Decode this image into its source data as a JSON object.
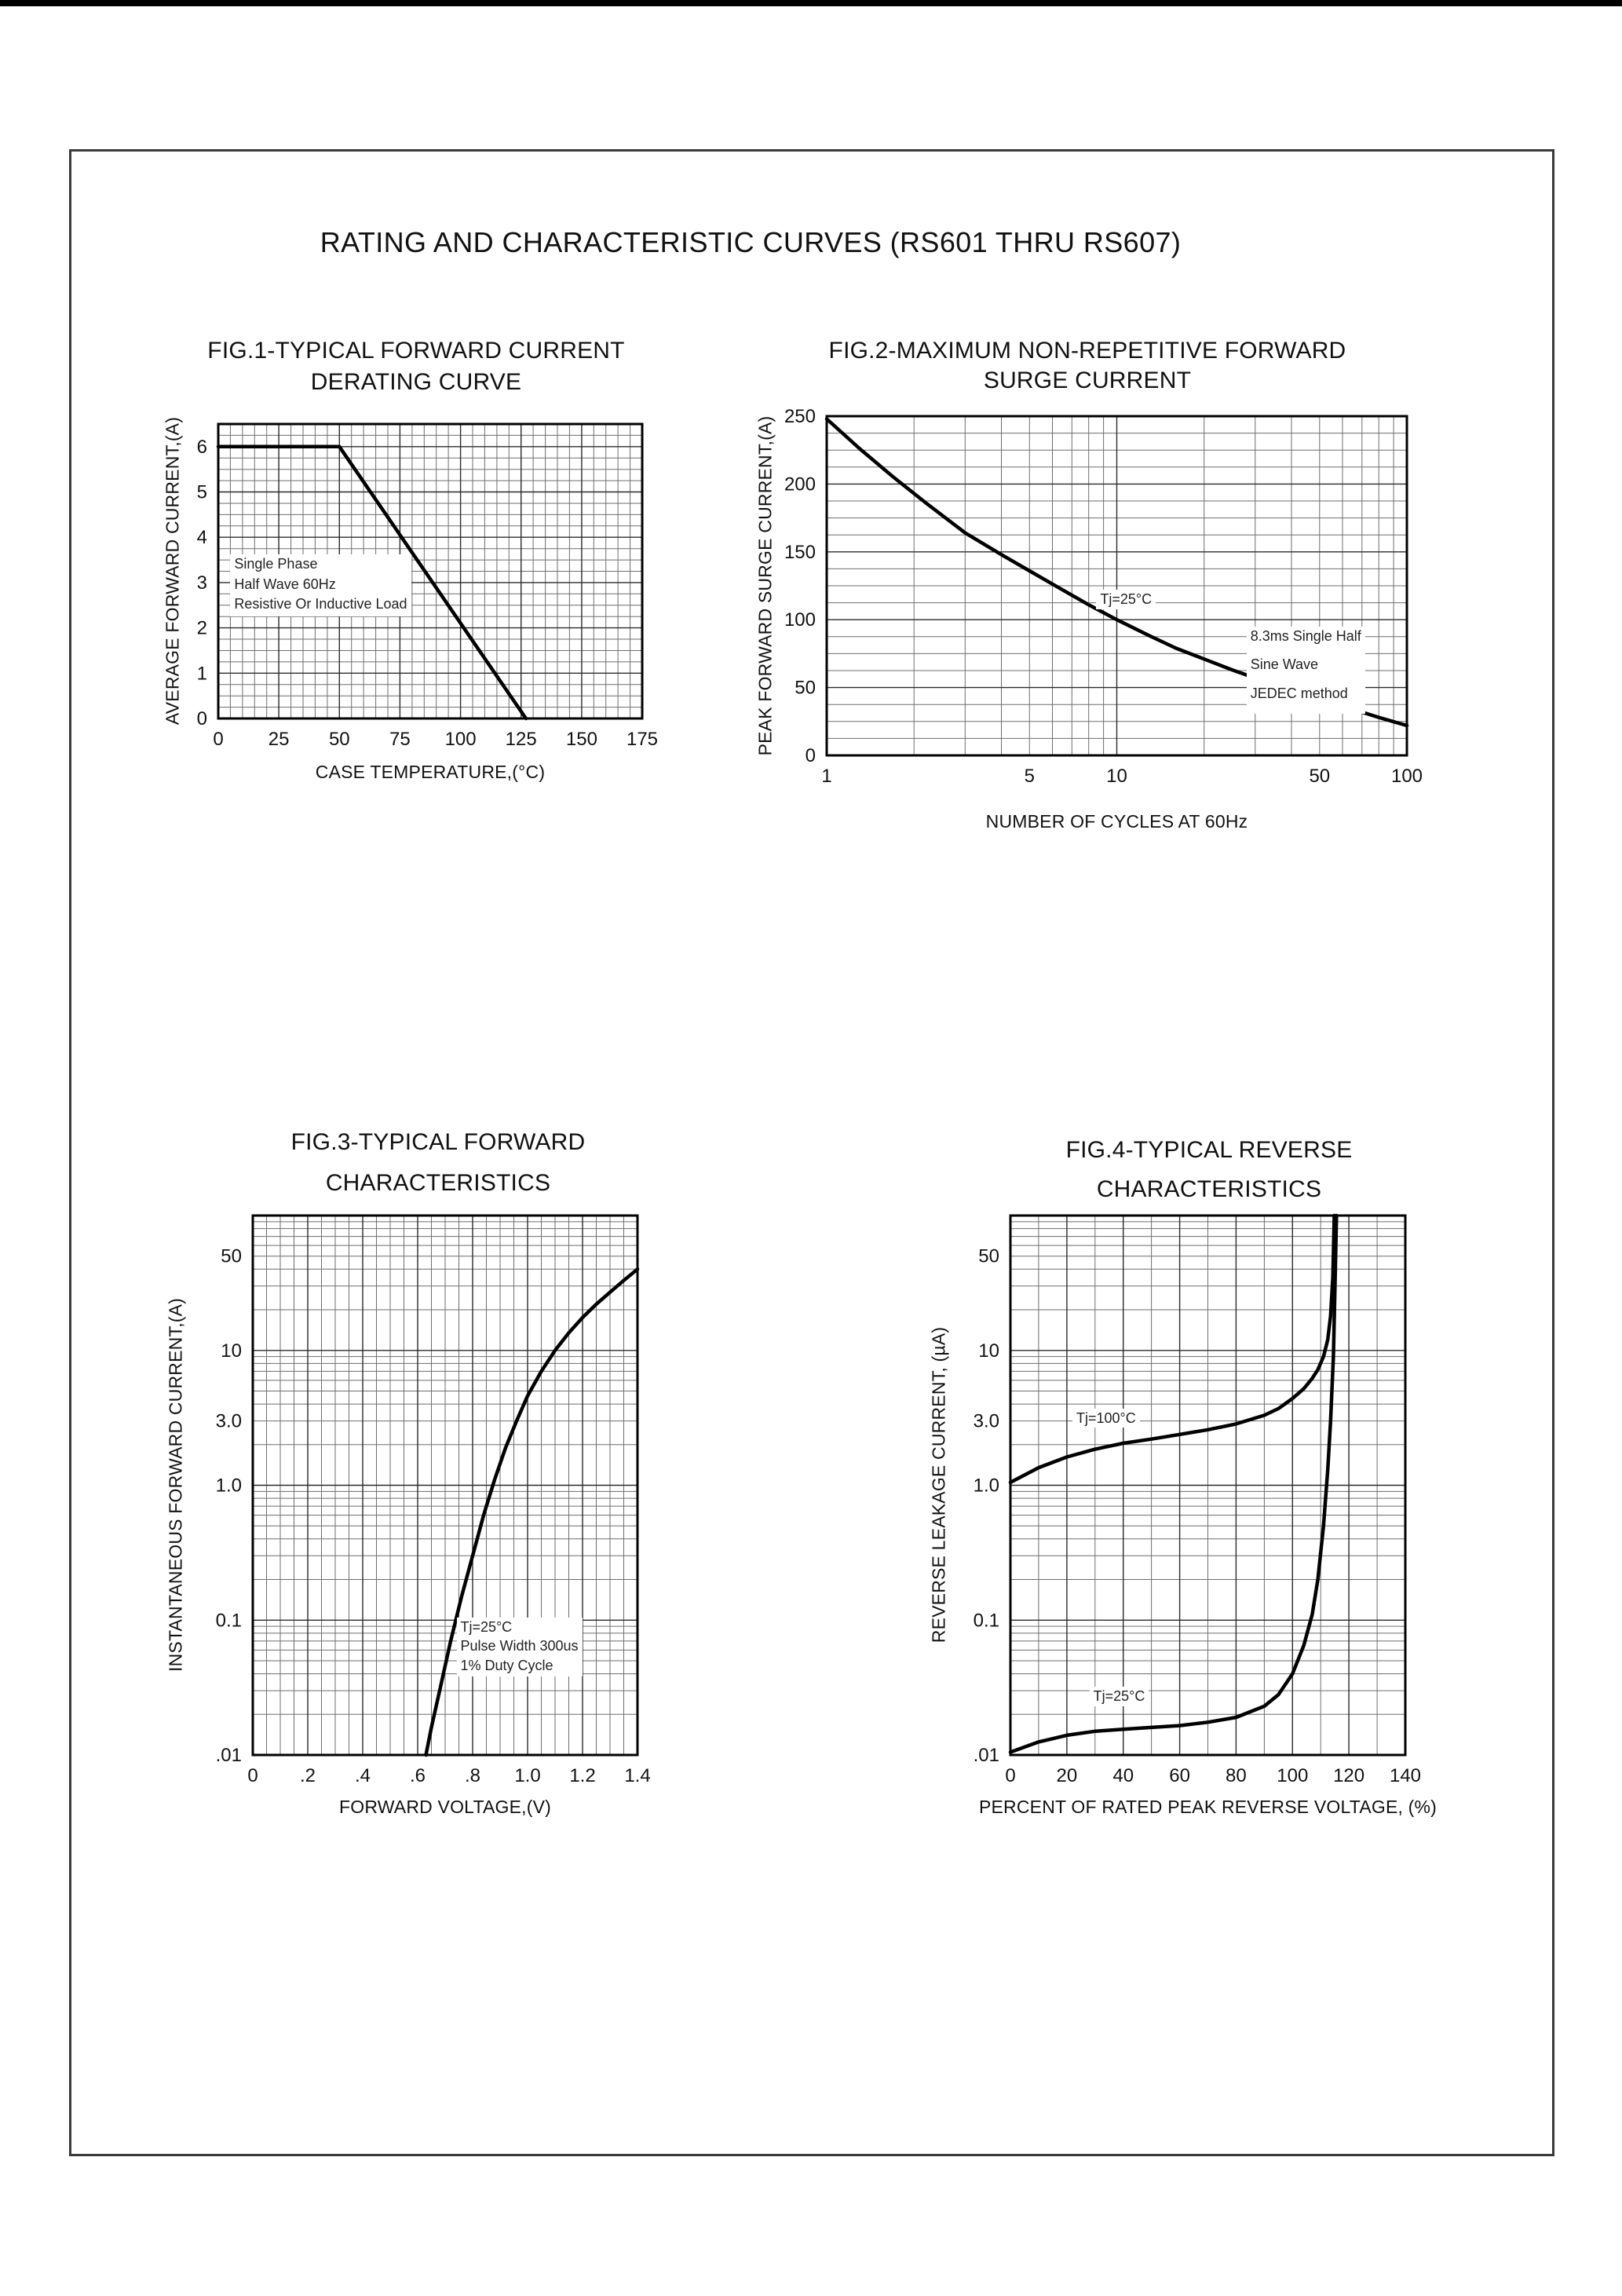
{
  "page": {
    "title": "RATING AND CHARACTERISTIC CURVES (RS601 THRU RS607)"
  },
  "chart_data": [
    {
      "id": "fig1",
      "type": "line",
      "title": "FIG.1-TYPICAL FORWARD CURRENT",
      "subtitle": "DERATING CURVE",
      "xlabel": "CASE TEMPERATURE,(°C)",
      "ylabel": "AVERAGE FORWARD CURRENT,(A)",
      "xscale": "linear",
      "yscale": "linear",
      "xlim": [
        0,
        175
      ],
      "ylim": [
        0,
        6.5
      ],
      "xticks": [
        0,
        25,
        50,
        75,
        100,
        125,
        150,
        175
      ],
      "xtick_labels": [
        "0",
        "25",
        "50",
        "75",
        "100",
        "125",
        "150",
        "175"
      ],
      "xminor": 5,
      "yticks": [
        0,
        1,
        2,
        3,
        4,
        5,
        6
      ],
      "ytick_labels": [
        "0",
        "1",
        "2",
        "3",
        "4",
        "5",
        "6"
      ],
      "yminor": 0.25,
      "grid": true,
      "series": [
        {
          "name": "derating-curve",
          "points": [
            [
              0,
              6
            ],
            [
              50,
              6
            ],
            [
              127,
              0
            ]
          ]
        }
      ],
      "annotations": [
        {
          "name": "note-load-conditions",
          "align": "left",
          "x": 5,
          "y": 3.62,
          "gap": 3,
          "lines": [
            "Single Phase",
            "Half Wave 60Hz",
            "Resistive Or Inductive Load"
          ]
        }
      ]
    },
    {
      "id": "fig2",
      "type": "line",
      "title": "FIG.2-MAXIMUM NON-REPETITIVE FORWARD",
      "subtitle": "SURGE CURRENT",
      "xlabel": "NUMBER OF CYCLES AT 60Hz",
      "ylabel": "PEAK FORWARD SURGE CURRENT,(A)",
      "xscale": "log",
      "yscale": "linear",
      "xlim": [
        1,
        100
      ],
      "ylim": [
        0,
        250
      ],
      "xticks": [
        1,
        5,
        10,
        50,
        100
      ],
      "xtick_labels": [
        "1",
        "5",
        "10",
        "50",
        "100"
      ],
      "yticks": [
        0,
        50,
        100,
        150,
        200,
        250
      ],
      "ytick_labels": [
        "0",
        "50",
        "100",
        "150",
        "200",
        "250"
      ],
      "yminor": 12.5,
      "grid": true,
      "series": [
        {
          "name": "surge-current-curve",
          "points": [
            [
              1,
              248
            ],
            [
              1.3,
              226
            ],
            [
              1.7,
              205
            ],
            [
              2.2,
              186
            ],
            [
              3,
              164
            ],
            [
              4,
              148
            ],
            [
              5,
              136
            ],
            [
              6.5,
              122
            ],
            [
              8,
              111
            ],
            [
              10,
              100
            ],
            [
              13,
              88
            ],
            [
              16,
              79
            ],
            [
              20,
              71
            ],
            [
              25,
              63
            ],
            [
              30,
              57
            ],
            [
              40,
              48
            ],
            [
              50,
              42
            ],
            [
              65,
              34
            ],
            [
              80,
              28
            ],
            [
              100,
              22
            ]
          ]
        }
      ],
      "annotations": [
        {
          "name": "note-tj-25",
          "align": "left",
          "x": 8.5,
          "y": 122,
          "gap": 0,
          "lines": [
            "Tj=25°C"
          ]
        },
        {
          "name": "note-surge-conditions",
          "align": "left",
          "x": 28,
          "y": 95,
          "gap": 14,
          "lines": [
            "8.3ms Single Half",
            "Sine Wave",
            "JEDEC method"
          ]
        }
      ]
    },
    {
      "id": "fig3",
      "type": "line",
      "title": "FIG.3-TYPICAL FORWARD",
      "subtitle": "CHARACTERISTICS",
      "xlabel": "FORWARD VOLTAGE,(V)",
      "ylabel": "INSTANTANEOUS FORWARD CURRENT,(A)",
      "xscale": "linear",
      "yscale": "log",
      "xlim": [
        0,
        1.4
      ],
      "ylim": [
        0.01,
        100
      ],
      "xticks": [
        0,
        0.2,
        0.4,
        0.6,
        0.8,
        1.0,
        1.2,
        1.4
      ],
      "xtick_labels": [
        "0",
        ".2",
        ".4",
        ".6",
        ".8",
        "1.0",
        "1.2",
        "1.4"
      ],
      "xminor": 0.05,
      "yticks": [
        50,
        10,
        3,
        1,
        0.1,
        0.01
      ],
      "ytick_labels": [
        "50",
        "10",
        "3.0",
        "1.0",
        "0.1",
        ".01"
      ],
      "grid": true,
      "series": [
        {
          "name": "forward-characteristic-curve",
          "points": [
            [
              0.63,
              0.01
            ],
            [
              0.65,
              0.016
            ],
            [
              0.68,
              0.03
            ],
            [
              0.72,
              0.07
            ],
            [
              0.76,
              0.15
            ],
            [
              0.8,
              0.3
            ],
            [
              0.84,
              0.6
            ],
            [
              0.88,
              1.1
            ],
            [
              0.92,
              1.9
            ],
            [
              0.96,
              3
            ],
            [
              1.0,
              4.6
            ],
            [
              1.05,
              7
            ],
            [
              1.1,
              10
            ],
            [
              1.15,
              13.5
            ],
            [
              1.2,
              17.5
            ],
            [
              1.25,
              22
            ],
            [
              1.3,
              27
            ],
            [
              1.35,
              33
            ],
            [
              1.4,
              40
            ]
          ]
        }
      ],
      "annotations": [
        {
          "name": "note-pulse-conditions",
          "align": "center",
          "x": 0.97,
          "y": 0.105,
          "gap": 2,
          "lines": [
            "Tj=25°C",
            "Pulse Width 300us",
            "1% Duty Cycle"
          ]
        }
      ]
    },
    {
      "id": "fig4",
      "type": "line",
      "title": "FIG.4-TYPICAL REVERSE",
      "subtitle": "CHARACTERISTICS",
      "xlabel": "PERCENT OF RATED PEAK REVERSE VOLTAGE, (%)",
      "ylabel": "REVERSE LEAKAGE CURRENT, (µA)",
      "xscale": "linear",
      "yscale": "log",
      "xlim": [
        0,
        140
      ],
      "ylim": [
        0.01,
        100
      ],
      "xticks": [
        0,
        20,
        40,
        60,
        80,
        100,
        120,
        140
      ],
      "xtick_labels": [
        "0",
        "20",
        "40",
        "60",
        "80",
        "100",
        "120",
        "140"
      ],
      "xminor": 10,
      "yticks": [
        50,
        10,
        3,
        1,
        0.1,
        0.01
      ],
      "ytick_labels": [
        "50",
        "10",
        "3.0",
        "1.0",
        "0.1",
        ".01"
      ],
      "grid": true,
      "series": [
        {
          "name": "reverse-leakage-100c-curve",
          "points": [
            [
              0,
              1.05
            ],
            [
              10,
              1.35
            ],
            [
              20,
              1.62
            ],
            [
              30,
              1.85
            ],
            [
              40,
              2.05
            ],
            [
              50,
              2.2
            ],
            [
              60,
              2.38
            ],
            [
              70,
              2.58
            ],
            [
              80,
              2.85
            ],
            [
              90,
              3.3
            ],
            [
              95,
              3.7
            ],
            [
              100,
              4.4
            ],
            [
              104,
              5.2
            ],
            [
              107,
              6.2
            ],
            [
              109,
              7.2
            ],
            [
              111,
              9
            ],
            [
              112.5,
              12
            ],
            [
              113.5,
              18
            ],
            [
              114.3,
              35
            ],
            [
              114.8,
              100
            ]
          ]
        },
        {
          "name": "reverse-leakage-25c-curve",
          "points": [
            [
              0,
              0.0105
            ],
            [
              10,
              0.0125
            ],
            [
              20,
              0.014
            ],
            [
              30,
              0.015
            ],
            [
              40,
              0.0155
            ],
            [
              50,
              0.016
            ],
            [
              60,
              0.0165
            ],
            [
              70,
              0.0175
            ],
            [
              80,
              0.019
            ],
            [
              90,
              0.023
            ],
            [
              95,
              0.028
            ],
            [
              100,
              0.04
            ],
            [
              104,
              0.065
            ],
            [
              107,
              0.11
            ],
            [
              109,
              0.2
            ],
            [
              111,
              0.5
            ],
            [
              112.5,
              1.3
            ],
            [
              113.5,
              3
            ],
            [
              114.5,
              9
            ],
            [
              115.2,
              40
            ],
            [
              115.6,
              100
            ]
          ]
        }
      ],
      "annotations": [
        {
          "name": "note-tj-100",
          "align": "left",
          "x": 22,
          "y": 3.7,
          "gap": 0,
          "lines": [
            "Tj=100°C"
          ]
        },
        {
          "name": "note-tj-25",
          "align": "left",
          "x": 28,
          "y": 0.032,
          "gap": 0,
          "lines": [
            "Tj=25°C"
          ]
        }
      ]
    }
  ]
}
